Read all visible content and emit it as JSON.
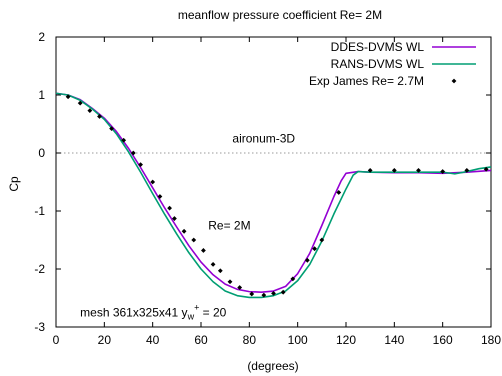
{
  "chart_data": {
    "type": "line",
    "title": "meanflow pressure coefficient  Re= 2M",
    "xlabel": "(degrees)",
    "ylabel": "Cp",
    "xlim": [
      0,
      180
    ],
    "ylim": [
      -3,
      2
    ],
    "x_ticks": [
      "0",
      "20",
      "40",
      "60",
      "80",
      "100",
      "120",
      "140",
      "160",
      "180"
    ],
    "y_ticks": [
      "2",
      "1",
      "0",
      "-1",
      "-2",
      "-3"
    ],
    "legend_position": "top-right",
    "annotations": [
      {
        "text": "aironum-3D",
        "x": 73,
        "y": 0.25
      },
      {
        "text": "Re= 2M",
        "x": 63,
        "y": -1.25
      },
      {
        "text_main": "mesh 361x325x41 y",
        "sub": "w",
        "sup": "+",
        "text_tail": " = 20",
        "x": 10,
        "y": -2.75
      }
    ],
    "zero_line": {
      "y": 0,
      "style": "dotted",
      "color": "#999999"
    },
    "series": [
      {
        "name": "DDES-DVMS WL",
        "style": "line",
        "color": "#9400d3",
        "points": [
          [
            0,
            1.03
          ],
          [
            5,
            1.0
          ],
          [
            10,
            0.92
          ],
          [
            15,
            0.77
          ],
          [
            20,
            0.6
          ],
          [
            25,
            0.37
          ],
          [
            30,
            0.08
          ],
          [
            35,
            -0.25
          ],
          [
            40,
            -0.6
          ],
          [
            45,
            -0.95
          ],
          [
            50,
            -1.28
          ],
          [
            55,
            -1.6
          ],
          [
            60,
            -1.88
          ],
          [
            65,
            -2.1
          ],
          [
            70,
            -2.26
          ],
          [
            75,
            -2.35
          ],
          [
            80,
            -2.39
          ],
          [
            85,
            -2.4
          ],
          [
            90,
            -2.38
          ],
          [
            95,
            -2.3
          ],
          [
            100,
            -2.08
          ],
          [
            105,
            -1.73
          ],
          [
            110,
            -1.25
          ],
          [
            115,
            -0.75
          ],
          [
            118,
            -0.48
          ],
          [
            120,
            -0.35
          ],
          [
            125,
            -0.32
          ],
          [
            130,
            -0.33
          ],
          [
            140,
            -0.34
          ],
          [
            150,
            -0.34
          ],
          [
            160,
            -0.35
          ],
          [
            170,
            -0.33
          ],
          [
            180,
            -0.3
          ]
        ]
      },
      {
        "name": "RANS-DVMS WL",
        "style": "line",
        "color": "#009e73",
        "points": [
          [
            0,
            1.03
          ],
          [
            5,
            1.0
          ],
          [
            10,
            0.91
          ],
          [
            15,
            0.76
          ],
          [
            20,
            0.58
          ],
          [
            25,
            0.33
          ],
          [
            30,
            0.02
          ],
          [
            35,
            -0.33
          ],
          [
            40,
            -0.7
          ],
          [
            45,
            -1.06
          ],
          [
            50,
            -1.4
          ],
          [
            55,
            -1.72
          ],
          [
            60,
            -2.0
          ],
          [
            65,
            -2.22
          ],
          [
            70,
            -2.38
          ],
          [
            75,
            -2.46
          ],
          [
            80,
            -2.49
          ],
          [
            85,
            -2.49
          ],
          [
            90,
            -2.46
          ],
          [
            95,
            -2.38
          ],
          [
            100,
            -2.2
          ],
          [
            105,
            -1.92
          ],
          [
            110,
            -1.52
          ],
          [
            115,
            -1.05
          ],
          [
            120,
            -0.62
          ],
          [
            123,
            -0.38
          ],
          [
            125,
            -0.32
          ],
          [
            130,
            -0.33
          ],
          [
            140,
            -0.33
          ],
          [
            150,
            -0.33
          ],
          [
            160,
            -0.33
          ],
          [
            165,
            -0.36
          ],
          [
            170,
            -0.32
          ],
          [
            175,
            -0.27
          ],
          [
            180,
            -0.24
          ]
        ]
      },
      {
        "name": "Exp James Re= 2.7M",
        "style": "marker",
        "color": "#000000",
        "points": [
          [
            5,
            0.97
          ],
          [
            10,
            0.86
          ],
          [
            14,
            0.73
          ],
          [
            18,
            0.63
          ],
          [
            23,
            0.42
          ],
          [
            28,
            0.22
          ],
          [
            32,
            0.0
          ],
          [
            35,
            -0.2
          ],
          [
            40,
            -0.5
          ],
          [
            43,
            -0.75
          ],
          [
            47,
            -0.95
          ],
          [
            49,
            -1.13
          ],
          [
            53,
            -1.35
          ],
          [
            57,
            -1.5
          ],
          [
            61,
            -1.68
          ],
          [
            65,
            -1.92
          ],
          [
            68,
            -2.03
          ],
          [
            72,
            -2.22
          ],
          [
            76,
            -2.32
          ],
          [
            81,
            -2.43
          ],
          [
            86,
            -2.45
          ],
          [
            90,
            -2.42
          ],
          [
            94,
            -2.4
          ],
          [
            98,
            -2.17
          ],
          [
            104,
            -1.85
          ],
          [
            107,
            -1.65
          ],
          [
            110,
            -1.5
          ],
          [
            117,
            -0.68
          ],
          [
            130,
            -0.3
          ],
          [
            140,
            -0.3
          ],
          [
            150,
            -0.3
          ],
          [
            160,
            -0.32
          ],
          [
            170,
            -0.3
          ],
          [
            178,
            -0.28
          ]
        ]
      }
    ]
  }
}
